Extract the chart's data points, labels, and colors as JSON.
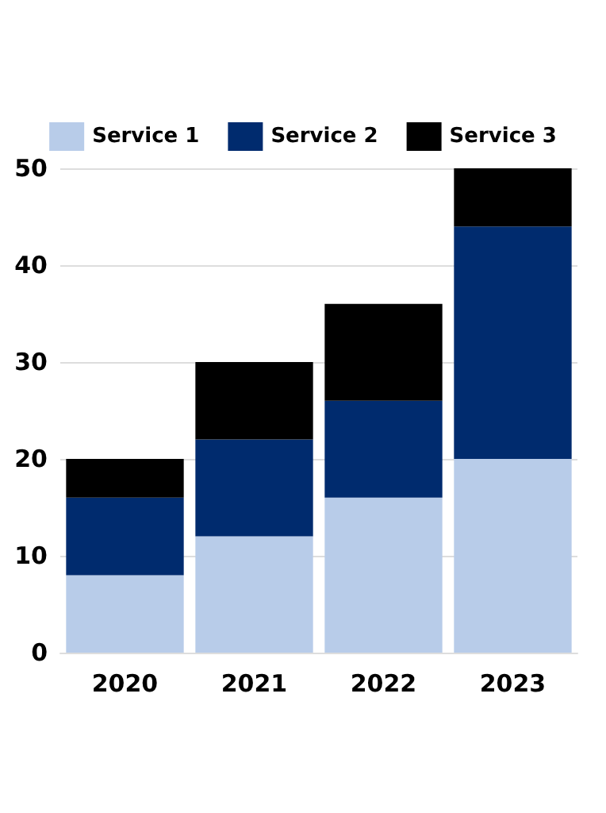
{
  "chart_data": {
    "type": "bar",
    "stacked": true,
    "categories": [
      "2020",
      "2021",
      "2022",
      "2023"
    ],
    "series": [
      {
        "name": "Service 1",
        "color": "#b8cce9",
        "values": [
          8,
          12,
          16,
          20
        ]
      },
      {
        "name": "Service 2",
        "color": "#002b6e",
        "values": [
          8,
          10,
          10,
          24
        ]
      },
      {
        "name": "Service 3",
        "color": "#000000",
        "values": [
          4,
          8,
          10,
          6
        ]
      }
    ],
    "ylim": [
      0,
      50
    ],
    "yticks": [
      0,
      10,
      20,
      30,
      40,
      50
    ],
    "grid": "y",
    "legend": "top"
  }
}
